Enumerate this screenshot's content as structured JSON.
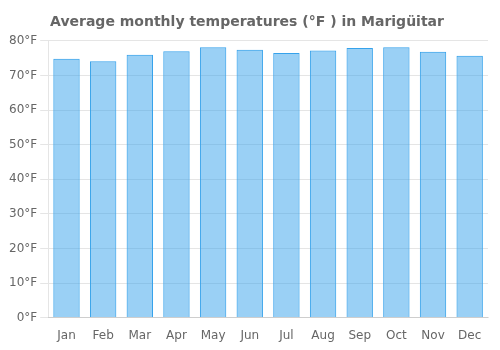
{
  "chart_data": {
    "type": "bar",
    "title": "Average monthly temperatures (°F ) in Marigüitar",
    "categories": [
      "Jan",
      "Feb",
      "Mar",
      "Apr",
      "May",
      "Jun",
      "Jul",
      "Aug",
      "Sep",
      "Oct",
      "Nov",
      "Dec"
    ],
    "values": [
      74.8,
      74.1,
      76.0,
      77.0,
      78.1,
      77.4,
      76.5,
      77.2,
      77.9,
      78.1,
      76.8,
      75.7
    ],
    "ylim": [
      0,
      80
    ],
    "yticks": [
      {
        "value": 0,
        "label": "0°F"
      },
      {
        "value": 10,
        "label": "10°F"
      },
      {
        "value": 20,
        "label": "20°F"
      },
      {
        "value": 30,
        "label": "30°F"
      },
      {
        "value": 40,
        "label": "40°F"
      },
      {
        "value": 50,
        "label": "50°F"
      },
      {
        "value": 60,
        "label": "60°F"
      },
      {
        "value": 70,
        "label": "70°F"
      },
      {
        "value": 80,
        "label": "80°F"
      }
    ],
    "grid": true
  }
}
